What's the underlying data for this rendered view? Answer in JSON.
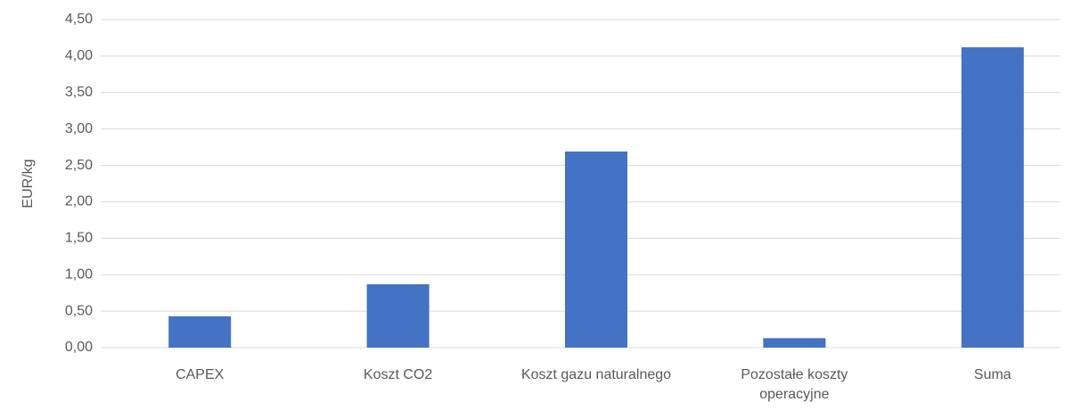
{
  "chart_data": {
    "type": "bar",
    "y_label": "EUR/kg",
    "categories": [
      "CAPEX",
      "Koszt CO2",
      "Koszt gazu naturalnego",
      "Pozostałe koszty operacyjne",
      "Suma"
    ],
    "values": [
      0.43,
      0.87,
      2.69,
      0.13,
      4.12
    ],
    "color": "#4472c4",
    "ylim": [
      0,
      4.5
    ],
    "yticks": [
      {
        "value": 0,
        "label": "0,00"
      },
      {
        "value": 0.5,
        "label": "0,50"
      },
      {
        "value": 1,
        "label": "1,00"
      },
      {
        "value": 1.5,
        "label": "1,50"
      },
      {
        "value": 2,
        "label": "2,00"
      },
      {
        "value": 2.5,
        "label": "2,50"
      },
      {
        "value": 3,
        "label": "3,00"
      },
      {
        "value": 3.5,
        "label": "3,50"
      },
      {
        "value": 4,
        "label": "4,00"
      },
      {
        "value": 4.5,
        "label": "4,50"
      }
    ],
    "grid": true
  }
}
